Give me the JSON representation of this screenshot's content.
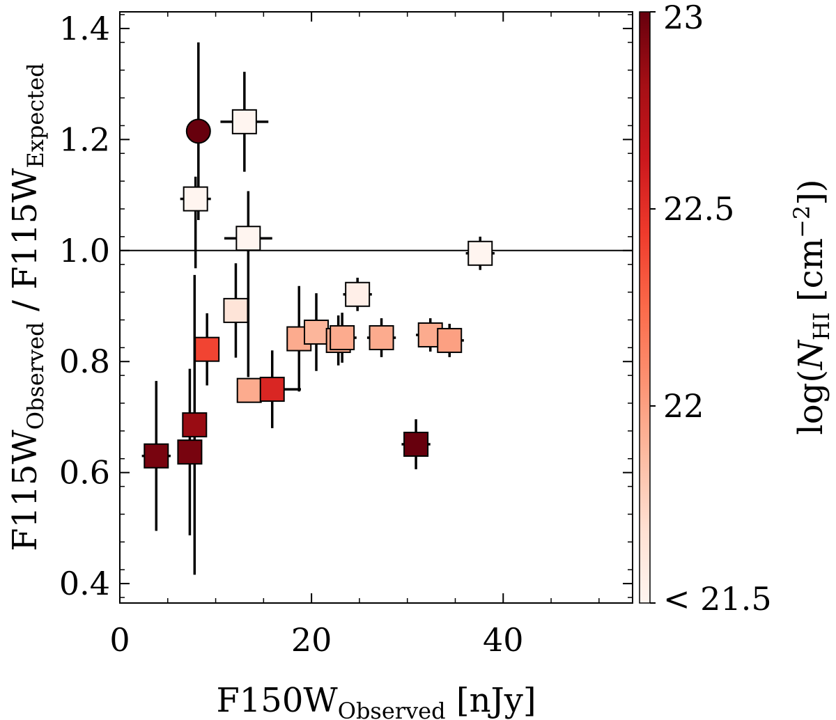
{
  "chart_data": {
    "type": "scatter",
    "xlabel": {
      "main": "F150W",
      "sub": "Observed",
      "unit": " [nJy]"
    },
    "ylabel": {
      "part1": "F115W",
      "sub1": "Observed",
      "sep": " / ",
      "part2": "F115W",
      "sub2": "Expected"
    },
    "xlim": [
      0,
      53.5
    ],
    "ylim": [
      0.365,
      1.43
    ],
    "xticks": [
      0,
      20,
      40
    ],
    "yticks": [
      0.4,
      0.6,
      0.8,
      1.0,
      1.2,
      1.4
    ],
    "xtick_labels": [
      "0",
      "20",
      "40"
    ],
    "ytick_labels": [
      "0.4",
      "0.6",
      "0.8",
      "1.0",
      "1.2",
      "1.4"
    ],
    "reference_line_y": 1.0,
    "colorbar": {
      "label_prefix": "log(",
      "label_N": "N",
      "label_sub": "HI",
      "label_suffix": " [cm",
      "label_exp": "−2",
      "label_end": "])",
      "range": [
        21.5,
        23
      ],
      "ticks": [
        21.5,
        22,
        22.5,
        23
      ],
      "tick_labels": [
        "< 21.5",
        "22",
        "22.5",
        "23"
      ],
      "colormap": "Reds"
    },
    "points": [
      {
        "x": 3.8,
        "y": 0.63,
        "xerr": 1.5,
        "yerr": [
          0.135,
          0.135
        ],
        "c": 22.95,
        "marker": "square"
      },
      {
        "x": 7.3,
        "y": 0.637,
        "xerr": 1.0,
        "yerr": [
          0.15,
          0.15
        ],
        "c": 22.95,
        "marker": "square"
      },
      {
        "x": 7.8,
        "y": 0.686,
        "xerr": 1.2,
        "yerr": [
          0.27,
          0.27
        ],
        "c": 22.85,
        "marker": "square"
      },
      {
        "x": 8.2,
        "y": 1.215,
        "xerr": 0.0,
        "yerr": [
          0.16,
          0.16
        ],
        "c": 23.0,
        "marker": "circle"
      },
      {
        "x": 7.9,
        "y": 1.093,
        "xerr": 1.6,
        "yerr": [
          0.125,
          0.04
        ],
        "c": 21.4,
        "marker": "square"
      },
      {
        "x": 9.1,
        "y": 0.822,
        "xerr": 1.0,
        "yerr": [
          0.065,
          0.065
        ],
        "c": 22.4,
        "marker": "square"
      },
      {
        "x": 12.1,
        "y": 0.892,
        "xerr": 1.0,
        "yerr": [
          0.085,
          0.085
        ],
        "c": 21.65,
        "marker": "square"
      },
      {
        "x": 13.0,
        "y": 1.232,
        "xerr": 2.5,
        "yerr": [
          0.09,
          0.09
        ],
        "c": 21.4,
        "marker": "square"
      },
      {
        "x": 13.4,
        "y": 1.022,
        "xerr": 2.5,
        "yerr": [
          0.25,
          0.085
        ],
        "c": 21.4,
        "marker": "square"
      },
      {
        "x": 13.5,
        "y": 0.748,
        "xerr": 0.0,
        "yerr": [
          0.02,
          0.02
        ],
        "c": 21.95,
        "marker": "square"
      },
      {
        "x": 15.9,
        "y": 0.75,
        "xerr": 3.0,
        "yerr": [
          0.07,
          0.07
        ],
        "c": 22.55,
        "marker": "square"
      },
      {
        "x": 18.7,
        "y": 0.841,
        "xerr": 1.0,
        "yerr": [
          0.095,
          0.095
        ],
        "c": 21.95,
        "marker": "square"
      },
      {
        "x": 20.5,
        "y": 0.853,
        "xerr": 1.0,
        "yerr": [
          0.07,
          0.07
        ],
        "c": 21.9,
        "marker": "square"
      },
      {
        "x": 22.8,
        "y": 0.838,
        "xerr": 1.0,
        "yerr": [
          0.045,
          0.045
        ],
        "c": 21.95,
        "marker": "square"
      },
      {
        "x": 23.2,
        "y": 0.843,
        "xerr": 1.5,
        "yerr": [
          0.045,
          0.045
        ],
        "c": 21.95,
        "marker": "square"
      },
      {
        "x": 24.8,
        "y": 0.921,
        "xerr": 1.5,
        "yerr": [
          0.03,
          0.03
        ],
        "c": 21.55,
        "marker": "square"
      },
      {
        "x": 27.3,
        "y": 0.843,
        "xerr": 1.5,
        "yerr": [
          0.035,
          0.035
        ],
        "c": 21.95,
        "marker": "square"
      },
      {
        "x": 30.9,
        "y": 0.651,
        "xerr": 1.5,
        "yerr": [
          0.045,
          0.045
        ],
        "c": 23.0,
        "marker": "square"
      },
      {
        "x": 32.4,
        "y": 0.848,
        "xerr": 1.5,
        "yerr": [
          0.03,
          0.03
        ],
        "c": 21.95,
        "marker": "square"
      },
      {
        "x": 34.4,
        "y": 0.838,
        "xerr": 1.5,
        "yerr": [
          0.03,
          0.03
        ],
        "c": 22.0,
        "marker": "square"
      },
      {
        "x": 37.6,
        "y": 0.995,
        "xerr": 1.5,
        "yerr": [
          0.03,
          0.03
        ],
        "c": 21.4,
        "marker": "square"
      }
    ]
  }
}
